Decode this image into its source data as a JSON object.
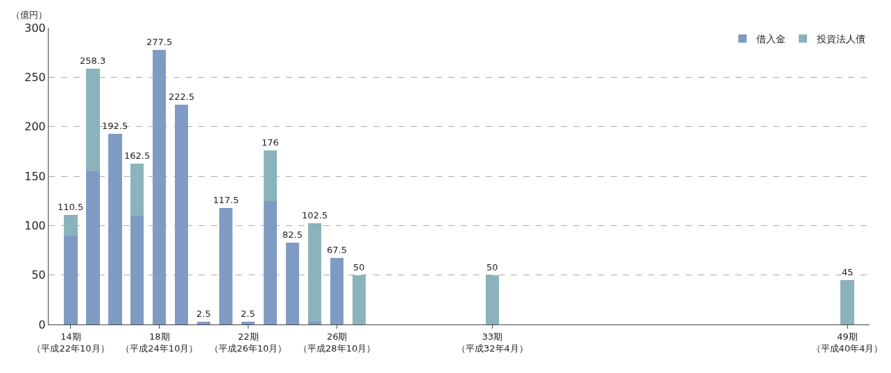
{
  "chart_data": {
    "type": "bar",
    "stacked": true,
    "ylabel": "（億円）",
    "categories": [
      "14期（平成22年10月）",
      null,
      null,
      null,
      "18期（平成24年10月）",
      null,
      null,
      null,
      "22期（平成26年10月）",
      null,
      null,
      null,
      "26期（平成28年10月）",
      null,
      null,
      null,
      null,
      null,
      null,
      "33期（平成32年4月）",
      null,
      null,
      null,
      null,
      null,
      null,
      null,
      null,
      null,
      null,
      null,
      null,
      null,
      null,
      null,
      "49期（平成40年4月）"
    ],
    "series": [
      {
        "name": "借入金",
        "color": "#7f9bc3",
        "values": [
          90,
          155,
          192.5,
          110,
          277.5,
          222.5,
          2.5,
          117.5,
          2.5,
          125,
          82.5,
          2.5,
          67.5,
          null,
          null,
          null,
          null,
          null,
          null,
          null,
          null,
          null,
          null,
          null,
          null,
          null,
          null,
          null,
          null,
          null,
          null,
          null,
          null,
          null,
          null,
          null
        ]
      },
      {
        "name": "投資法人債",
        "color": "#8bb3bb",
        "values": [
          20.5,
          103.3,
          null,
          52.5,
          null,
          null,
          null,
          null,
          null,
          51,
          null,
          100,
          null,
          50,
          null,
          null,
          null,
          null,
          null,
          50,
          null,
          null,
          null,
          null,
          null,
          null,
          null,
          null,
          null,
          null,
          null,
          null,
          null,
          null,
          null,
          45
        ]
      }
    ],
    "totals": [
      "110.5",
      "258.3",
      "192.5",
      "162.5",
      "277.5",
      "222.5",
      "2.5",
      "117.5",
      "2.5",
      "176",
      "82.5",
      "102.5",
      "67.5",
      "50",
      null,
      null,
      null,
      null,
      null,
      "50",
      null,
      null,
      null,
      null,
      null,
      null,
      null,
      null,
      null,
      null,
      null,
      null,
      null,
      null,
      null,
      "45"
    ],
    "ylim": [
      0,
      300
    ],
    "yticks": [
      0,
      50,
      100,
      150,
      200,
      250,
      300
    ],
    "grid": "y",
    "legend": "top right"
  }
}
